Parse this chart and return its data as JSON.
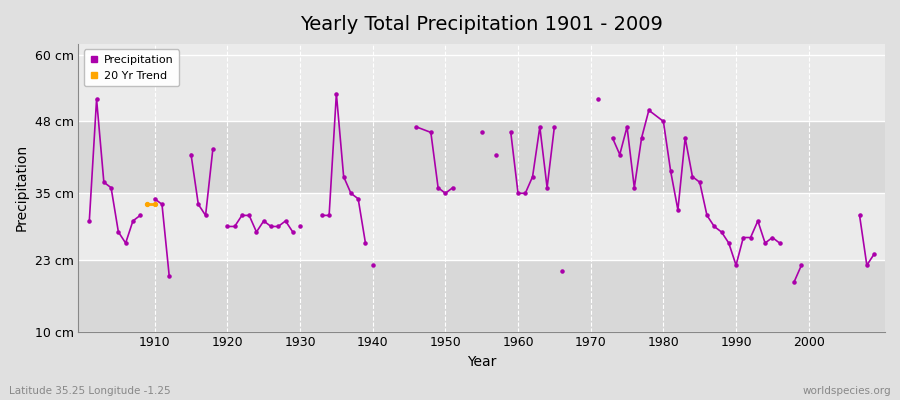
{
  "title": "Yearly Total Precipitation 1901 - 2009",
  "xlabel": "Year",
  "ylabel": "Precipitation",
  "subtitle_lat": "Latitude 35.25 Longitude -1.25",
  "watermark": "worldspecies.org",
  "line_color": "#AA00AA",
  "trend_color": "#FFA500",
  "bg_color": "#E0E0E0",
  "plot_bg_light": "#EBEBEB",
  "plot_bg_dark": "#D8D8D8",
  "grid_color": "#FFFFFF",
  "ylim": [
    10,
    62
  ],
  "yticks": [
    10,
    23,
    35,
    48,
    60
  ],
  "ytick_labels": [
    "10 cm",
    "23 cm",
    "35 cm",
    "48 cm",
    "60 cm"
  ],
  "xlim": [
    1899.5,
    2010.5
  ],
  "xticks": [
    1910,
    1920,
    1930,
    1940,
    1950,
    1960,
    1970,
    1980,
    1990,
    2000
  ],
  "years": [
    1901,
    1902,
    1903,
    1904,
    1905,
    1906,
    1907,
    1908,
    1909,
    1910,
    1911,
    1912,
    1913,
    1914,
    1915,
    1916,
    1917,
    1918,
    1919,
    1920,
    1921,
    1922,
    1923,
    1924,
    1925,
    1926,
    1927,
    1928,
    1929,
    1930,
    1931,
    1932,
    1933,
    1934,
    1935,
    1936,
    1937,
    1938,
    1939,
    1940,
    1941,
    1942,
    1943,
    1944,
    1945,
    1946,
    1947,
    1948,
    1949,
    1950,
    1951,
    1952,
    1953,
    1954,
    1955,
    1956,
    1957,
    1958,
    1959,
    1960,
    1961,
    1962,
    1963,
    1964,
    1965,
    1966,
    1967,
    1968,
    1969,
    1970,
    1971,
    1972,
    1973,
    1974,
    1975,
    1976,
    1977,
    1978,
    1979,
    1980,
    1981,
    1982,
    1983,
    1984,
    1985,
    1986,
    1987,
    1988,
    1989,
    1990,
    1991,
    1992,
    1993,
    1994,
    1995,
    1996,
    1997,
    1998,
    1999,
    2000,
    2001,
    2002,
    2003,
    2004,
    2005,
    2006,
    2007,
    2008,
    2009
  ],
  "precipitation": [
    30,
    52,
    37,
    36,
    28,
    26,
    30,
    31,
    null,
    34,
    33,
    20,
    null,
    null,
    42,
    33,
    31,
    43,
    null,
    29,
    29,
    31,
    31,
    28,
    30,
    29,
    29,
    30,
    28,
    29,
    null,
    null,
    31,
    31,
    53,
    38,
    35,
    34,
    26,
    22,
    null,
    null,
    null,
    null,
    null,
    47,
    null,
    46,
    36,
    35,
    36,
    null,
    null,
    null,
    46,
    null,
    42,
    null,
    46,
    35,
    35,
    38,
    47,
    36,
    47,
    21,
    null,
    null,
    null,
    null,
    52,
    null,
    45,
    42,
    47,
    36,
    45,
    50,
    null,
    48,
    39,
    32,
    45,
    38,
    37,
    31,
    29,
    28,
    26,
    22,
    27,
    27,
    30,
    26,
    27,
    26,
    null,
    19,
    22,
    null,
    null,
    null,
    null,
    null,
    null,
    null,
    31,
    22,
    24
  ],
  "connected_segments": [
    [
      1901,
      1902,
      1903,
      1904,
      1905,
      1906,
      1907,
      1908
    ],
    [
      1910,
      1911,
      1912
    ],
    [
      1915,
      1916,
      1917,
      1918
    ],
    [
      1920,
      1921,
      1922,
      1923,
      1924,
      1925,
      1926,
      1927,
      1928,
      1929
    ],
    [
      1932,
      1933,
      1934,
      1935,
      1936,
      1937,
      1938,
      1939
    ],
    [
      1945,
      1946,
      1947,
      1948,
      1949,
      1950,
      1951
    ],
    [
      1954,
      1955
    ],
    [
      1957
    ],
    [
      1959,
      1960,
      1961,
      1962,
      1963,
      1964,
      1965
    ],
    [
      1970,
      1971
    ],
    [
      1973,
      1974,
      1975,
      1976,
      1977,
      1978,
      1979,
      1980,
      1981,
      1982,
      1983,
      1984,
      1985,
      1986,
      1987,
      1988,
      1989,
      1990,
      1991,
      1992,
      1993,
      1994,
      1995,
      1996
    ],
    [
      1998,
      1999
    ],
    [
      2007,
      2008,
      2009
    ]
  ],
  "isolated_dots": [
    1909,
    1930,
    1931,
    1940,
    1941,
    1942,
    1943,
    1944,
    1952,
    1953,
    1956,
    1958,
    1966,
    1967,
    1968,
    1969,
    1972,
    1997,
    2000,
    2001,
    2002,
    2003,
    2004,
    2005,
    2006
  ],
  "trend_data": {
    "years": [
      1909,
      1910
    ],
    "values": [
      33,
      33
    ]
  }
}
